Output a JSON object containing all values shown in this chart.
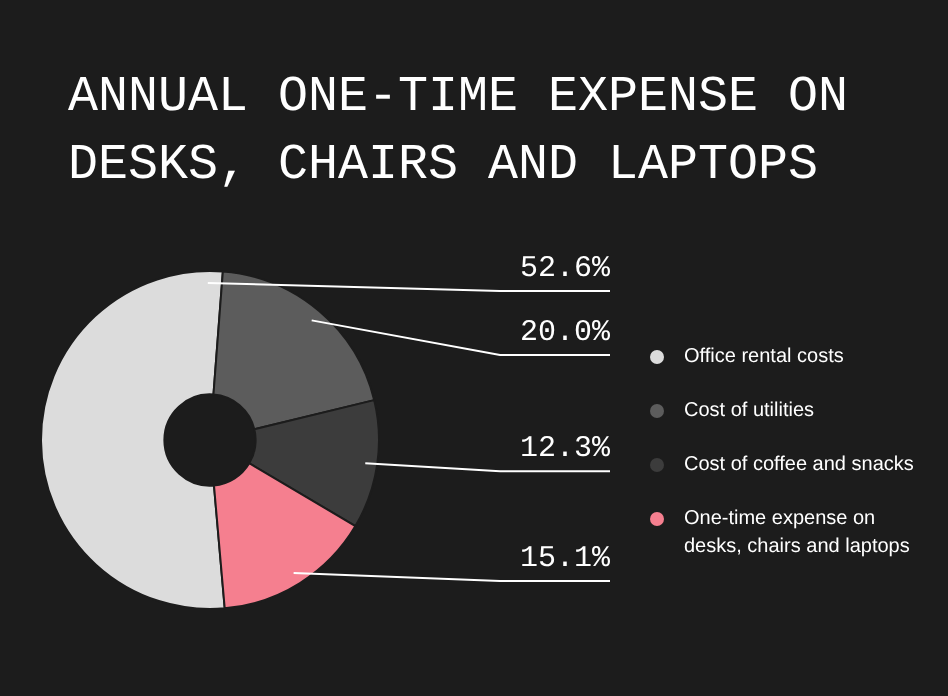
{
  "chart_data": {
    "type": "donut",
    "title": "ANNUAL ONE-TIME EXPENSE ON DESKS, CHAIRS AND LAPTOPS",
    "categories": [
      "Office rental costs",
      "Cost of utilities",
      "Cost of coffee and snacks",
      "One-time expense on desks, chairs and laptops"
    ],
    "values": [
      52.6,
      20.0,
      12.3,
      15.1
    ],
    "colors": [
      "#dcdcdc",
      "#5c5c5c",
      "#3c3c3c",
      "#f57f8f"
    ],
    "value_labels": [
      "52.6%",
      "20.0%",
      "12.3%",
      "15.1%"
    ],
    "legend": "right"
  }
}
